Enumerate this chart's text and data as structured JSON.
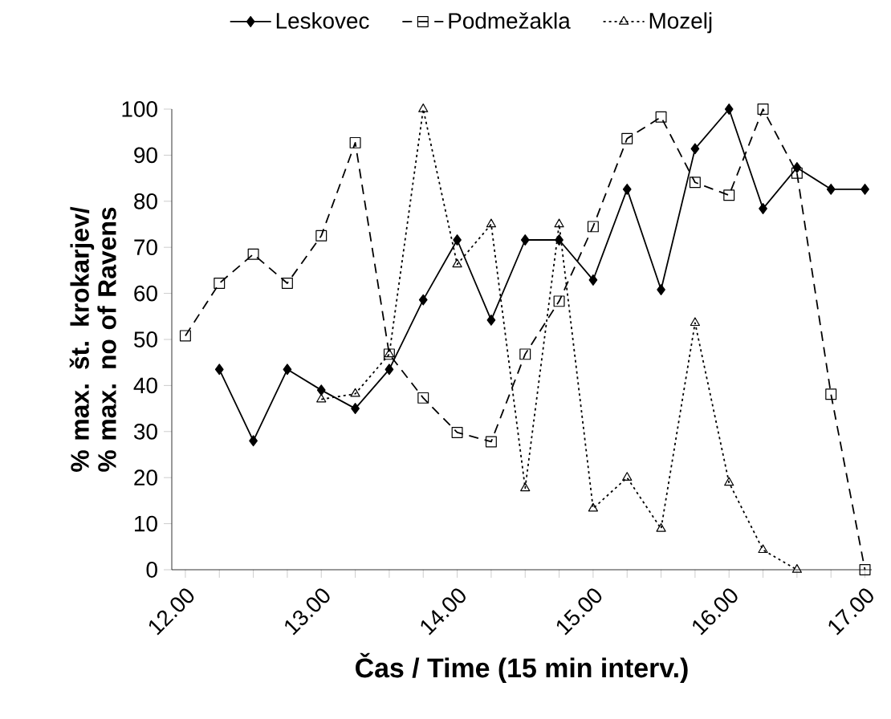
{
  "chart_data": {
    "type": "line",
    "xlabel": "Čas / Time (15 min interv.)",
    "ylabel": "% max. št. krokarjev/ % max. no of Ravens",
    "x": [
      12,
      12.25,
      12.5,
      12.75,
      13,
      13.25,
      13.5,
      13.75,
      14,
      14.25,
      14.5,
      14.75,
      15,
      15.25,
      15.5,
      15.75,
      16,
      16.25,
      16.5,
      16.75,
      17
    ],
    "series": [
      {
        "name": "Leskovec",
        "color": "#000000",
        "marker": "diamond",
        "line_style": "solid",
        "values": [
          null,
          43.5,
          28,
          43.5,
          39,
          35,
          43.5,
          58.6,
          71.6,
          54.2,
          71.6,
          71.6,
          62.9,
          82.6,
          60.8,
          91.4,
          100,
          78.4,
          87.3,
          82.6,
          82.6
        ]
      },
      {
        "name": "Podmežakla",
        "color": "#000000",
        "marker": "square",
        "line_style": "dashed",
        "values": [
          50.8,
          62.2,
          68.5,
          62.2,
          72.5,
          92.7,
          46.8,
          37.3,
          29.8,
          27.8,
          46.8,
          58.3,
          74.5,
          93.6,
          98.3,
          84.1,
          81.3,
          100,
          86.1,
          38.1,
          0
        ]
      },
      {
        "name": "Mozelj",
        "color": "#000000",
        "marker": "triangle",
        "line_style": "dotted",
        "values": [
          null,
          null,
          null,
          null,
          37,
          38.2,
          46.8,
          100,
          66.3,
          75,
          17.7,
          75,
          13.3,
          20,
          8.9,
          53.6,
          18.9,
          4.3,
          0,
          null,
          null
        ]
      }
    ],
    "xlim": [
      11.9,
      17.05
    ],
    "ylim": [
      0,
      100
    ],
    "yticks": [
      0,
      10,
      20,
      30,
      40,
      50,
      60,
      70,
      80,
      90,
      100
    ],
    "xticks": [
      {
        "value": 12,
        "label": "12.00"
      },
      {
        "value": 12.25,
        "label": null
      },
      {
        "value": 12.5,
        "label": null
      },
      {
        "value": 12.75,
        "label": null
      },
      {
        "value": 13,
        "label": "13.00"
      },
      {
        "value": 13.25,
        "label": null
      },
      {
        "value": 13.5,
        "label": null
      },
      {
        "value": 13.75,
        "label": null
      },
      {
        "value": 14,
        "label": "14.00"
      },
      {
        "value": 14.25,
        "label": null
      },
      {
        "value": 14.5,
        "label": null
      },
      {
        "value": 14.75,
        "label": null
      },
      {
        "value": 15,
        "label": "15.00"
      },
      {
        "value": 15.25,
        "label": null
      },
      {
        "value": 15.5,
        "label": null
      },
      {
        "value": 15.75,
        "label": null
      },
      {
        "value": 16,
        "label": "16.00"
      },
      {
        "value": 16.25,
        "label": null
      },
      {
        "value": 16.5,
        "label": null
      },
      {
        "value": 16.75,
        "label": null
      },
      {
        "value": 17,
        "label": "17.00"
      }
    ],
    "grid": false,
    "legend": "top"
  }
}
